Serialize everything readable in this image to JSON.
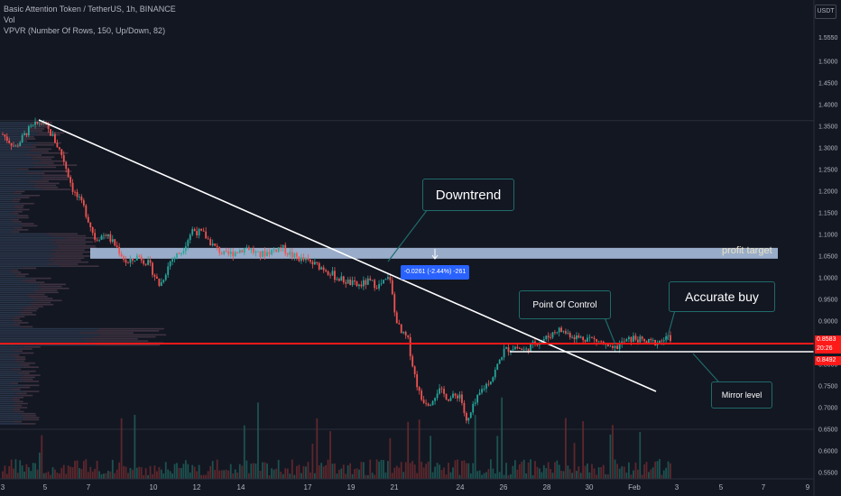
{
  "legend": {
    "symbol": "Basic Attention Token / TetherUS, 1h, BINANCE",
    "vol": "Vol",
    "vpvr": "VPVR (Number Of Rows, 150, Up/Down, 82)"
  },
  "currency": "USDT",
  "annotations": {
    "downtrend": "Downtrend",
    "point_of_control": "Point Of Control",
    "accurate_buy": "Accurate buy",
    "mirror_level": "Mirror level",
    "profit_target": "profit target",
    "measure": "-0.0261 (-2.44%) -261"
  },
  "price_tags": {
    "upper": "0.8583",
    "countdown": "20:26",
    "lower": "0.8492"
  },
  "colors": {
    "background": "#131722",
    "up": "#26a69a",
    "down": "#ef5350",
    "red_line": "#ff1a1a",
    "zone": "#b2c7e6",
    "callout_border": "#1f6b6b",
    "measure_bg": "#2962ff"
  },
  "chart_data": {
    "type": "candlestick",
    "y_axis": {
      "ticks": [
        "1.5550",
        "1.5000",
        "1.4500",
        "1.4000",
        "1.3500",
        "1.3000",
        "1.2500",
        "1.2000",
        "1.1500",
        "1.1000",
        "1.0500",
        "1.0000",
        "0.9500",
        "0.9000",
        "0.8500",
        "0.8000",
        "0.7500",
        "0.7000",
        "0.6500",
        "0.6000",
        "0.5500"
      ],
      "range": [
        0.54,
        1.57
      ]
    },
    "x_axis": {
      "ticks": [
        "3",
        "5",
        "7",
        "10",
        "12",
        "14",
        "17",
        "19",
        "21",
        "24",
        "26",
        "28",
        "30",
        "Feb",
        "3",
        "5",
        "7",
        "9"
      ]
    },
    "price_path": [
      {
        "d": 3,
        "p": 1.33
      },
      {
        "d": 3.6,
        "p": 1.3
      },
      {
        "d": 4.2,
        "p": 1.34
      },
      {
        "d": 4.8,
        "p": 1.36
      },
      {
        "d": 5.3,
        "p": 1.33
      },
      {
        "d": 5.8,
        "p": 1.28
      },
      {
        "d": 6.3,
        "p": 1.2
      },
      {
        "d": 6.8,
        "p": 1.16
      },
      {
        "d": 7.3,
        "p": 1.09
      },
      {
        "d": 7.8,
        "p": 1.1
      },
      {
        "d": 8.3,
        "p": 1.07
      },
      {
        "d": 8.8,
        "p": 1.03
      },
      {
        "d": 9.3,
        "p": 1.05
      },
      {
        "d": 9.8,
        "p": 1.03
      },
      {
        "d": 10.3,
        "p": 0.98
      },
      {
        "d": 10.8,
        "p": 1.04
      },
      {
        "d": 11.3,
        "p": 1.06
      },
      {
        "d": 11.8,
        "p": 1.11
      },
      {
        "d": 12.3,
        "p": 1.1
      },
      {
        "d": 12.8,
        "p": 1.07
      },
      {
        "d": 13.3,
        "p": 1.05
      },
      {
        "d": 13.8,
        "p": 1.06
      },
      {
        "d": 14.3,
        "p": 1.07
      },
      {
        "d": 14.8,
        "p": 1.05
      },
      {
        "d": 15.3,
        "p": 1.06
      },
      {
        "d": 15.8,
        "p": 1.07
      },
      {
        "d": 16.3,
        "p": 1.05
      },
      {
        "d": 16.8,
        "p": 1.04
      },
      {
        "d": 17.3,
        "p": 1.03
      },
      {
        "d": 17.8,
        "p": 1.02
      },
      {
        "d": 18.3,
        "p": 1.0
      },
      {
        "d": 18.8,
        "p": 0.99
      },
      {
        "d": 19.3,
        "p": 0.98
      },
      {
        "d": 19.8,
        "p": 0.99
      },
      {
        "d": 20.3,
        "p": 0.98
      },
      {
        "d": 20.8,
        "p": 1.0
      },
      {
        "d": 21.0,
        "p": 0.92
      },
      {
        "d": 21.3,
        "p": 0.87
      },
      {
        "d": 21.6,
        "p": 0.86
      },
      {
        "d": 21.9,
        "p": 0.78
      },
      {
        "d": 22.2,
        "p": 0.72
      },
      {
        "d": 22.6,
        "p": 0.71
      },
      {
        "d": 23.0,
        "p": 0.74
      },
      {
        "d": 23.5,
        "p": 0.72
      },
      {
        "d": 24.0,
        "p": 0.73
      },
      {
        "d": 24.3,
        "p": 0.66
      },
      {
        "d": 24.6,
        "p": 0.7
      },
      {
        "d": 25.0,
        "p": 0.74
      },
      {
        "d": 25.5,
        "p": 0.77
      },
      {
        "d": 26.0,
        "p": 0.83
      },
      {
        "d": 26.5,
        "p": 0.84
      },
      {
        "d": 27.0,
        "p": 0.83
      },
      {
        "d": 27.5,
        "p": 0.85
      },
      {
        "d": 28.0,
        "p": 0.86
      },
      {
        "d": 28.5,
        "p": 0.88
      },
      {
        "d": 29.0,
        "p": 0.87
      },
      {
        "d": 29.5,
        "p": 0.86
      },
      {
        "d": 30.0,
        "p": 0.86
      },
      {
        "d": 30.5,
        "p": 0.85
      },
      {
        "d": 31.0,
        "p": 0.83
      },
      {
        "d": 31.5,
        "p": 0.85
      },
      {
        "d": 32.0,
        "p": 0.86
      },
      {
        "d": 32.5,
        "p": 0.85
      },
      {
        "d": 33.0,
        "p": 0.85
      },
      {
        "d": 33.7,
        "p": 0.86
      }
    ],
    "levels": {
      "profit_target_zone": [
        1.043,
        1.068
      ],
      "red_line": 0.8583,
      "mirror_level": 0.8492
    },
    "trendline": {
      "from": {
        "d": 4.8,
        "p": 1.36
      },
      "to": {
        "d": 38.5,
        "p": 0.74
      }
    }
  }
}
